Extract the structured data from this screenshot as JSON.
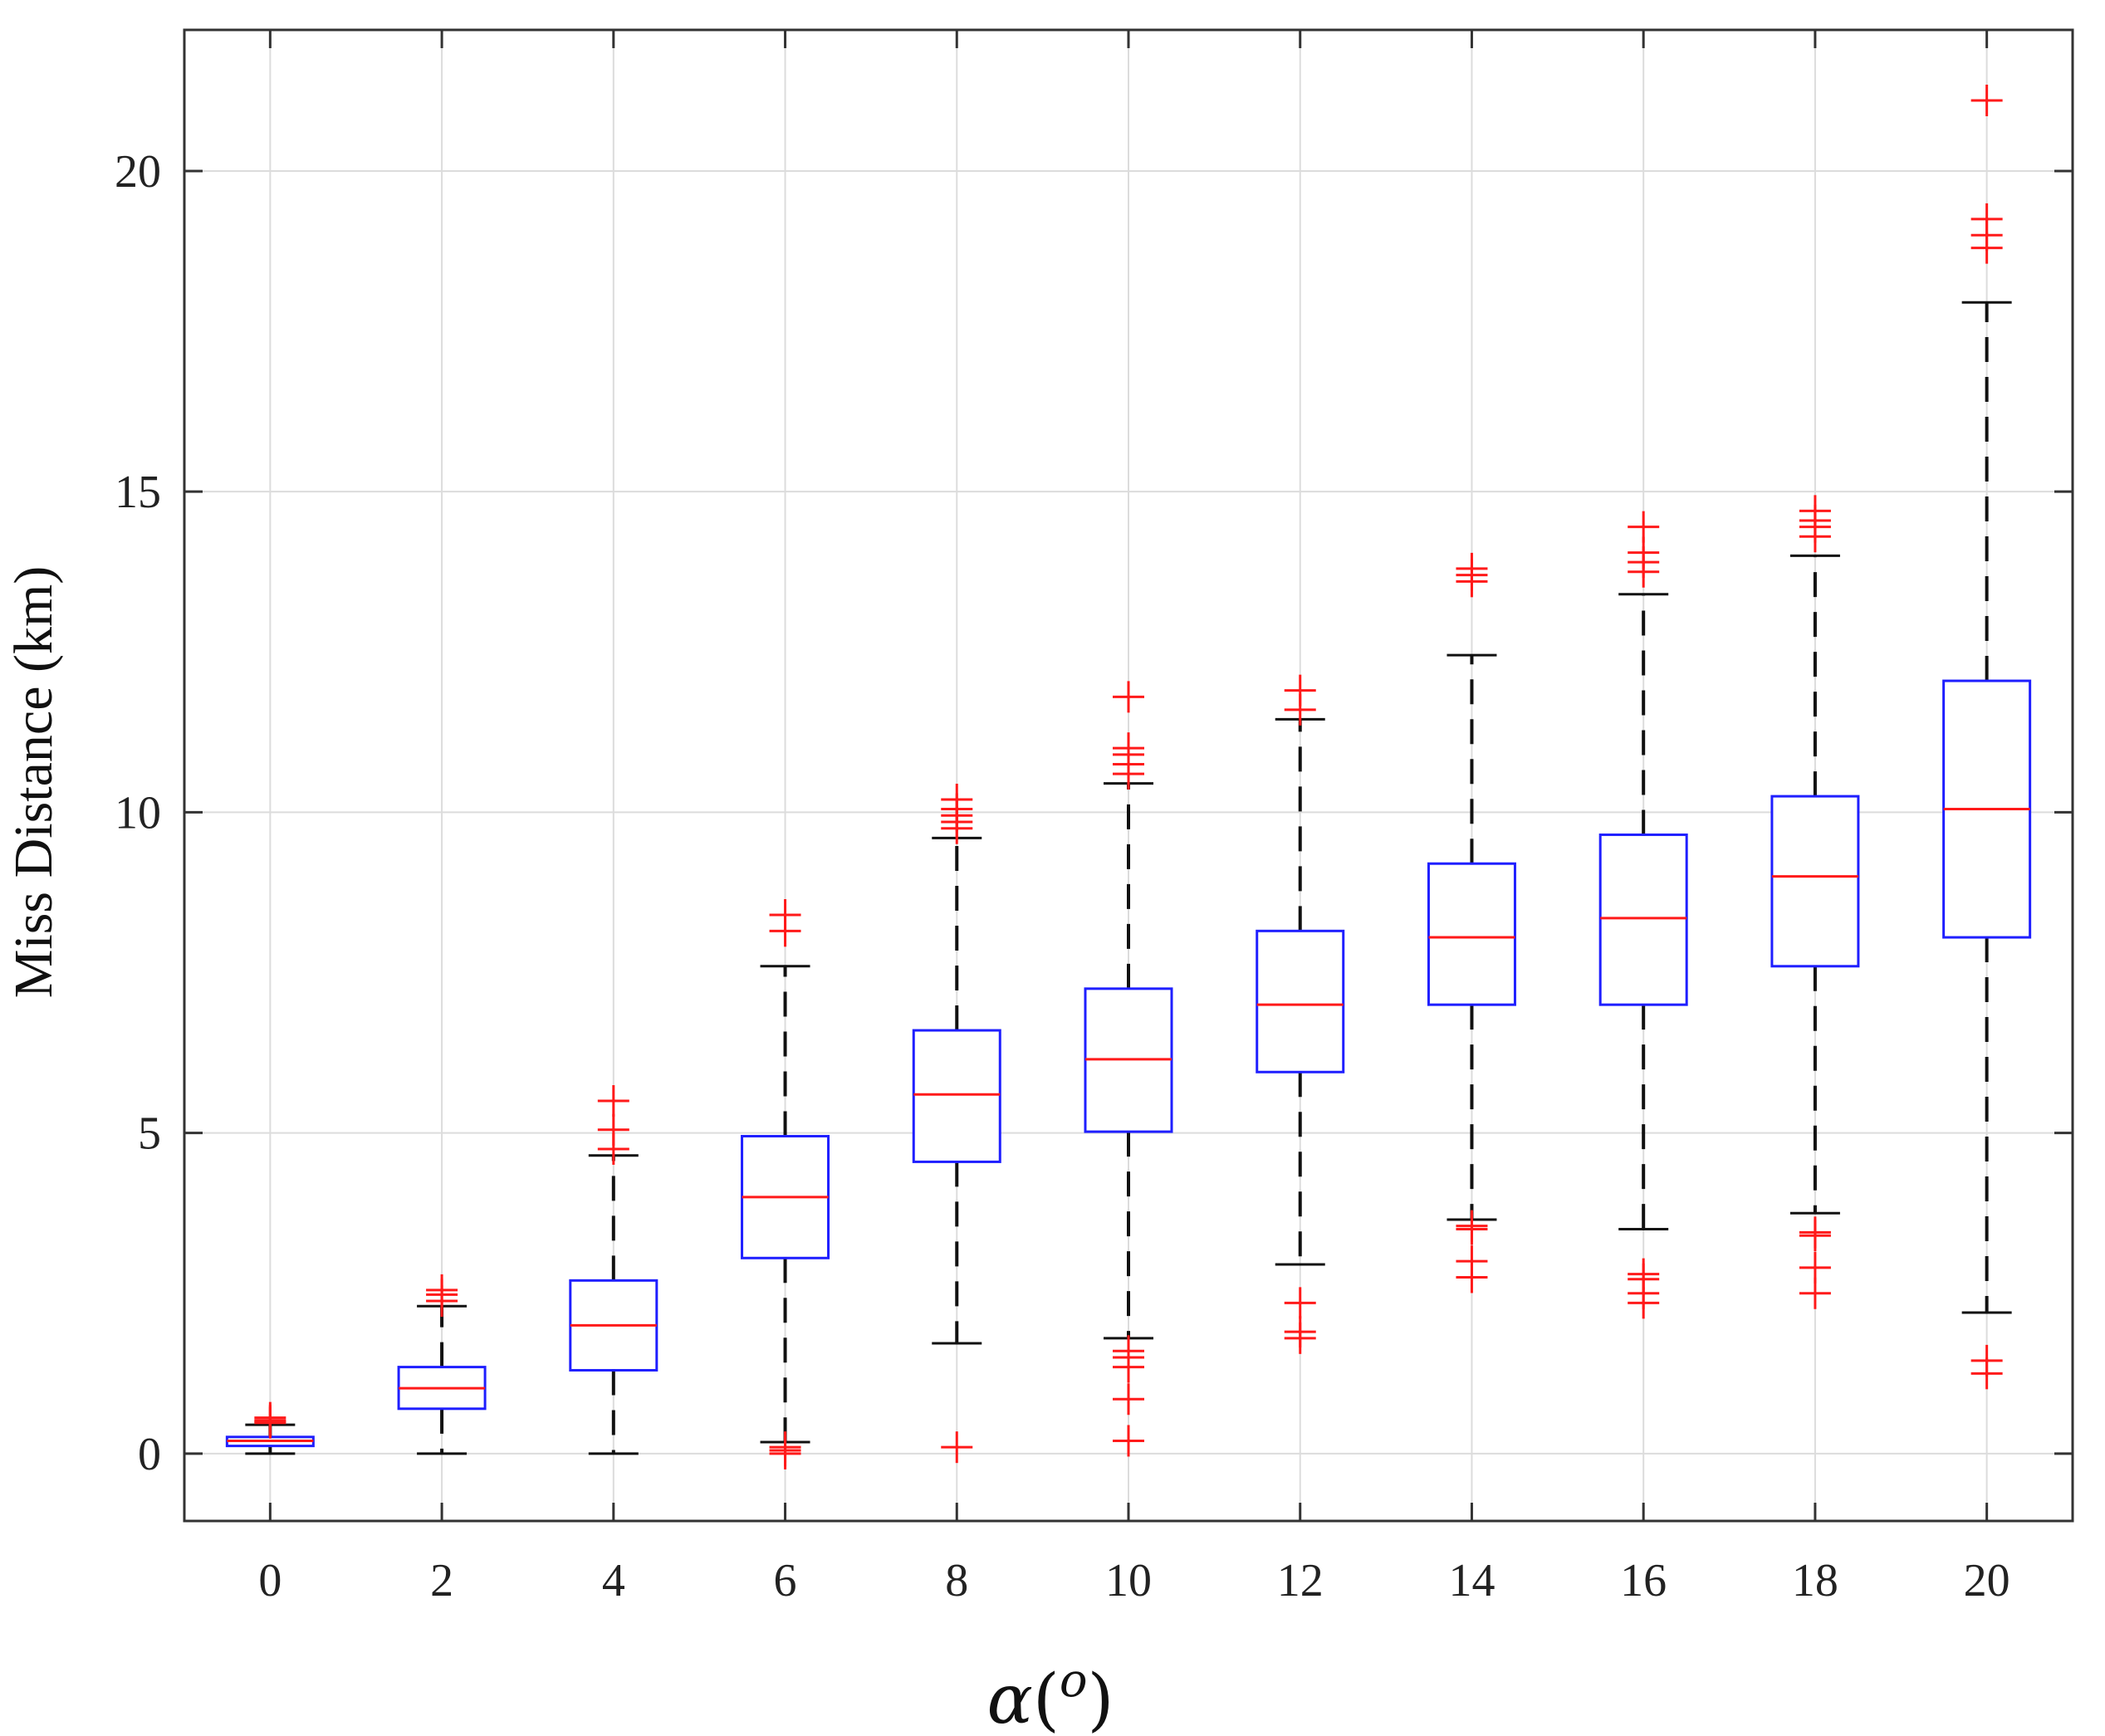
{
  "chart_data": {
    "type": "boxplot",
    "title": "",
    "xlabel": "α(o)",
    "xlabel_parts": {
      "symbol": "α",
      "open": "(",
      "sup": "o",
      "close": ")"
    },
    "ylabel": "Miss Distance (km)",
    "categories": [
      "0",
      "2",
      "4",
      "6",
      "8",
      "10",
      "12",
      "14",
      "16",
      "18",
      "20"
    ],
    "ylim": [
      -1.05,
      22.2
    ],
    "yticks": [
      "0",
      "5",
      "10",
      "15",
      "20"
    ],
    "grid": true,
    "colors": {
      "box": "#1f1fff",
      "median": "#ff1a1a",
      "whisker": "#111111",
      "outlier": "#ff1a1a",
      "grid": "#dcdcdc",
      "axis": "#333333"
    },
    "boxes": [
      {
        "x": 0,
        "whisker_low": 0.0,
        "q1": 0.12,
        "median": 0.2,
        "q3": 0.26,
        "whisker_high": 0.45,
        "outliers": [
          0.48,
          0.52,
          0.56,
          0.5
        ]
      },
      {
        "x": 2,
        "whisker_low": 0.0,
        "q1": 0.7,
        "median": 1.02,
        "q3": 1.35,
        "whisker_high": 2.3,
        "outliers": [
          2.38,
          2.48,
          2.55
        ]
      },
      {
        "x": 4,
        "whisker_low": 0.0,
        "q1": 1.3,
        "median": 2.0,
        "q3": 2.7,
        "whisker_high": 4.65,
        "outliers": [
          4.75,
          5.05,
          5.5
        ]
      },
      {
        "x": 6,
        "whisker_low": 0.18,
        "q1": 3.05,
        "median": 4.0,
        "q3": 4.95,
        "whisker_high": 7.6,
        "outliers": [
          0.0,
          0.05,
          0.1,
          8.15,
          8.4
        ]
      },
      {
        "x": 8,
        "whisker_low": 1.72,
        "q1": 4.55,
        "median": 5.6,
        "q3": 6.6,
        "whisker_high": 9.6,
        "outliers": [
          0.1,
          9.75,
          9.85,
          9.95,
          10.05,
          10.2
        ]
      },
      {
        "x": 10,
        "whisker_low": 1.8,
        "q1": 5.02,
        "median": 6.15,
        "q3": 7.25,
        "whisker_high": 10.45,
        "outliers": [
          0.2,
          0.85,
          1.35,
          1.5,
          1.6,
          10.6,
          10.75,
          10.9,
          11.0,
          11.8
        ]
      },
      {
        "x": 12,
        "whisker_low": 2.95,
        "q1": 5.95,
        "median": 7.0,
        "q3": 8.15,
        "whisker_high": 11.45,
        "outliers": [
          1.8,
          1.9,
          2.35,
          11.6,
          11.9
        ]
      },
      {
        "x": 14,
        "whisker_low": 3.65,
        "q1": 7.0,
        "median": 8.05,
        "q3": 9.2,
        "whisker_high": 12.45,
        "outliers": [
          2.75,
          3.0,
          3.5,
          3.55,
          13.6,
          13.7,
          13.8
        ]
      },
      {
        "x": 16,
        "whisker_low": 3.5,
        "q1": 7.0,
        "median": 8.35,
        "q3": 9.65,
        "whisker_high": 13.4,
        "outliers": [
          2.35,
          2.5,
          2.72,
          2.8,
          13.75,
          13.9,
          14.05,
          14.45
        ]
      },
      {
        "x": 18,
        "whisker_low": 3.75,
        "q1": 7.6,
        "median": 9.0,
        "q3": 10.25,
        "whisker_high": 14.0,
        "outliers": [
          2.5,
          2.9,
          3.4,
          3.45,
          14.3,
          14.45,
          14.55,
          14.7
        ]
      },
      {
        "x": 20,
        "whisker_low": 2.2,
        "q1": 8.05,
        "median": 10.05,
        "q3": 12.05,
        "whisker_high": 17.95,
        "outliers": [
          1.25,
          1.45,
          18.8,
          19.0,
          19.25,
          21.1
        ]
      }
    ]
  }
}
